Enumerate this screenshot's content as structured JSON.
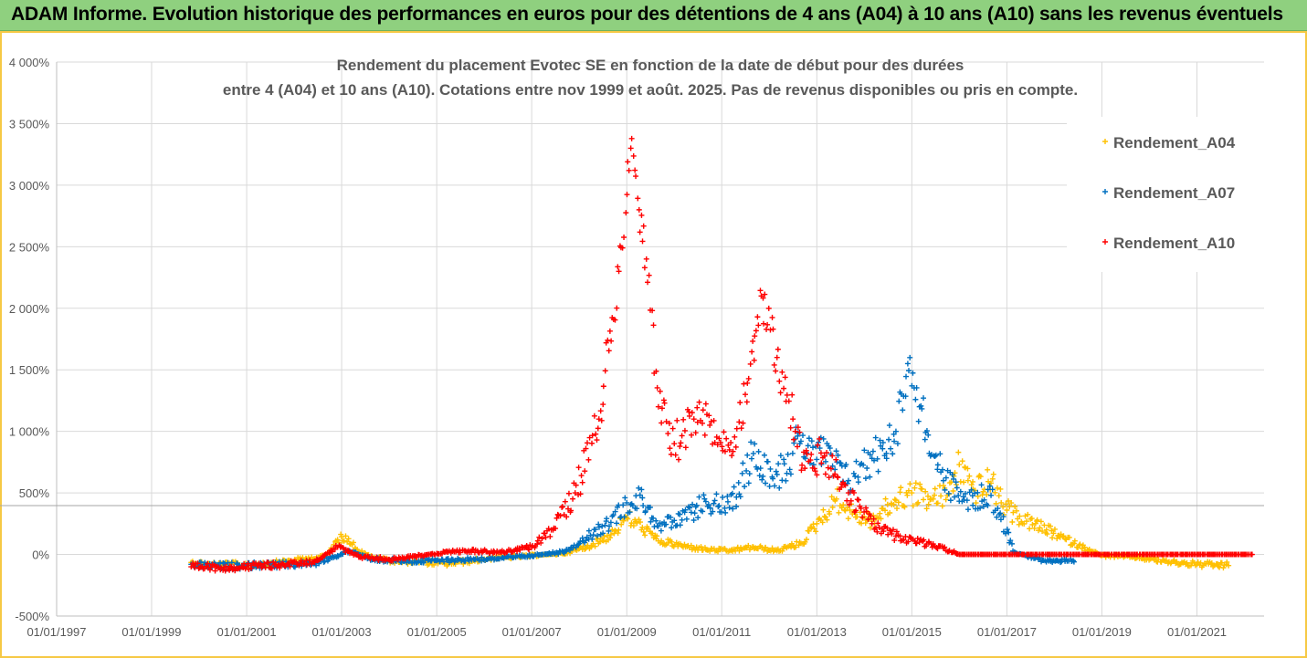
{
  "banner": {
    "title": "ADAM Informe. Evolution historique des performances en euros pour des détentions de 4 ans (A04) à 10 ans (A10) sans les revenus éventuels"
  },
  "colors": {
    "banner_bg": "#8fd07f",
    "frame": "#f6c945",
    "A04": "#ffc000",
    "A07": "#0070c0",
    "A10": "#ff0000"
  },
  "chart_data": {
    "type": "scatter",
    "title_lines": [
      "Rendement du placement Evotec SE en fonction de la date de début pour des durées",
      "entre 4 (A04) et 10 ans (A10). Cotations entre nov 1999 et août. 2025. Pas de revenus disponibles ou pris en compte."
    ],
    "xlabel": "",
    "ylabel": "",
    "x_range": [
      "1997-01-01",
      "2022-06-01"
    ],
    "ylim": [
      -500,
      4000
    ],
    "y_ticks": [
      -500,
      0,
      500,
      1000,
      1500,
      2000,
      2500,
      3000,
      3500,
      4000
    ],
    "y_tick_labels": [
      "-500%",
      "0%",
      "500%",
      "1 000%",
      "1 500%",
      "2 000%",
      "2 500%",
      "3 000%",
      "3 500%",
      "4 000%"
    ],
    "x_ticks": [
      "1997-01-01",
      "1999-01-01",
      "2001-01-01",
      "2003-01-01",
      "2005-01-01",
      "2007-01-01",
      "2009-01-01",
      "2011-01-01",
      "2013-01-01",
      "2015-01-01",
      "2017-01-01",
      "2019-01-01",
      "2021-01-01"
    ],
    "x_tick_labels": [
      "01/01/1997",
      "01/01/1999",
      "01/01/2001",
      "01/01/2003",
      "01/01/2005",
      "01/01/2007",
      "01/01/2009",
      "01/01/2011",
      "01/01/2013",
      "01/01/2015",
      "01/01/2017",
      "01/01/2019",
      "01/01/2021"
    ],
    "grid": true,
    "legend_position": "right",
    "series": [
      {
        "name": "Rendement_A04",
        "color": "#ffc000",
        "points": [
          [
            "1999-11-01",
            -65
          ],
          [
            "2000-03-01",
            -80
          ],
          [
            "2000-07-01",
            -85
          ],
          [
            "2001-01-01",
            -85
          ],
          [
            "2001-07-01",
            -75
          ],
          [
            "2002-03-01",
            -40
          ],
          [
            "2002-09-01",
            -15
          ],
          [
            "2002-12-01",
            120
          ],
          [
            "2003-02-01",
            150
          ],
          [
            "2003-05-01",
            40
          ],
          [
            "2003-09-01",
            -30
          ],
          [
            "2004-03-01",
            -55
          ],
          [
            "2004-09-01",
            -60
          ],
          [
            "2005-03-01",
            -75
          ],
          [
            "2005-09-01",
            -55
          ],
          [
            "2006-03-01",
            -30
          ],
          [
            "2006-09-01",
            -20
          ],
          [
            "2007-03-01",
            -5
          ],
          [
            "2007-09-01",
            10
          ],
          [
            "2008-03-01",
            60
          ],
          [
            "2008-09-01",
            160
          ],
          [
            "2009-01-01",
            300
          ],
          [
            "2009-05-01",
            220
          ],
          [
            "2009-09-01",
            110
          ],
          [
            "2010-03-01",
            70
          ],
          [
            "2010-09-01",
            40
          ],
          [
            "2011-03-01",
            30
          ],
          [
            "2011-09-01",
            60
          ],
          [
            "2012-03-01",
            30
          ],
          [
            "2012-09-01",
            90
          ],
          [
            "2013-01-01",
            250
          ],
          [
            "2013-06-01",
            450
          ],
          [
            "2013-10-01",
            330
          ],
          [
            "2014-03-01",
            270
          ],
          [
            "2014-09-01",
            440
          ],
          [
            "2015-01-01",
            500
          ],
          [
            "2015-06-01",
            450
          ],
          [
            "2015-10-01",
            480
          ],
          [
            "2016-01-01",
            730
          ],
          [
            "2016-05-01",
            520
          ],
          [
            "2016-09-01",
            580
          ],
          [
            "2017-01-01",
            360
          ],
          [
            "2017-06-01",
            270
          ],
          [
            "2017-11-01",
            200
          ],
          [
            "2018-06-01",
            90
          ],
          [
            "2019-01-01",
            -10
          ],
          [
            "2019-09-01",
            -20
          ],
          [
            "2020-06-01",
            -60
          ],
          [
            "2021-01-01",
            -80
          ],
          [
            "2021-09-01",
            -90
          ]
        ]
      },
      {
        "name": "Rendement_A07",
        "color": "#0070c0",
        "points": [
          [
            "1999-11-01",
            -80
          ],
          [
            "2000-06-01",
            -95
          ],
          [
            "2001-01-01",
            -90
          ],
          [
            "2001-09-01",
            -85
          ],
          [
            "2002-06-01",
            -75
          ],
          [
            "2002-12-01",
            -10
          ],
          [
            "2003-03-01",
            30
          ],
          [
            "2003-09-01",
            -40
          ],
          [
            "2004-06-01",
            -55
          ],
          [
            "2005-01-01",
            -50
          ],
          [
            "2005-09-01",
            -40
          ],
          [
            "2006-06-01",
            -30
          ],
          [
            "2007-01-01",
            -10
          ],
          [
            "2007-09-01",
            20
          ],
          [
            "2008-03-01",
            140
          ],
          [
            "2008-09-01",
            260
          ],
          [
            "2009-01-01",
            420
          ],
          [
            "2009-05-01",
            460
          ],
          [
            "2009-09-01",
            230
          ],
          [
            "2010-03-01",
            280
          ],
          [
            "2010-09-01",
            430
          ],
          [
            "2011-03-01",
            380
          ],
          [
            "2011-09-01",
            820
          ],
          [
            "2012-03-01",
            650
          ],
          [
            "2012-09-01",
            920
          ],
          [
            "2013-03-01",
            800
          ],
          [
            "2013-09-01",
            600
          ],
          [
            "2014-03-01",
            780
          ],
          [
            "2014-09-01",
            1000
          ],
          [
            "2014-12-01",
            1550
          ],
          [
            "2015-03-01",
            1200
          ],
          [
            "2015-09-01",
            600
          ],
          [
            "2016-03-01",
            440
          ],
          [
            "2016-09-01",
            480
          ],
          [
            "2017-03-01",
            20
          ],
          [
            "2017-09-01",
            -40
          ],
          [
            "2018-06-01",
            -60
          ]
        ]
      },
      {
        "name": "Rendement_A10",
        "color": "#ff0000",
        "points": [
          [
            "1999-11-01",
            -100
          ],
          [
            "2000-06-01",
            -105
          ],
          [
            "2001-01-01",
            -100
          ],
          [
            "2001-09-01",
            -85
          ],
          [
            "2002-06-01",
            -60
          ],
          [
            "2002-12-01",
            60
          ],
          [
            "2003-06-01",
            -20
          ],
          [
            "2004-01-01",
            -40
          ],
          [
            "2004-09-01",
            -10
          ],
          [
            "2005-03-01",
            20
          ],
          [
            "2005-09-01",
            30
          ],
          [
            "2006-06-01",
            20
          ],
          [
            "2007-01-01",
            60
          ],
          [
            "2007-06-01",
            200
          ],
          [
            "2007-12-01",
            500
          ],
          [
            "2008-06-01",
            1100
          ],
          [
            "2008-11-01",
            2300
          ],
          [
            "2009-02-01",
            3300
          ],
          [
            "2009-06-01",
            2400
          ],
          [
            "2009-09-01",
            1200
          ],
          [
            "2010-01-01",
            900
          ],
          [
            "2010-06-01",
            1100
          ],
          [
            "2010-10-01",
            1050
          ],
          [
            "2011-03-01",
            850
          ],
          [
            "2011-07-01",
            1300
          ],
          [
            "2011-11-01",
            2100
          ],
          [
            "2012-03-01",
            1600
          ],
          [
            "2012-07-01",
            1100
          ],
          [
            "2012-10-01",
            700
          ],
          [
            "2013-03-01",
            800
          ],
          [
            "2013-09-01",
            500
          ],
          [
            "2014-03-01",
            250
          ],
          [
            "2014-09-01",
            150
          ],
          [
            "2015-03-01",
            100
          ],
          [
            "2015-09-01",
            50
          ],
          [
            "2016-01-01",
            0
          ],
          [
            "2018-01-01",
            0
          ],
          [
            "2020-01-01",
            0
          ],
          [
            "2021-06-01",
            0
          ],
          [
            "2022-03-01",
            0
          ]
        ]
      }
    ]
  }
}
